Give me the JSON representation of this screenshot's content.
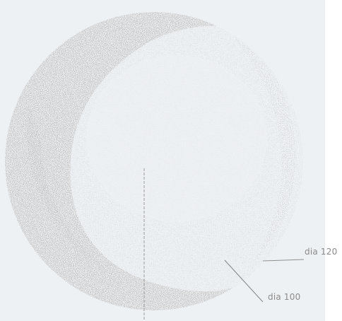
{
  "figure": {
    "labels": {
      "outer": "dia 120",
      "inner": "dia 100"
    },
    "colors": {
      "background": "#eef1f4",
      "stipple": "#8a8a8a",
      "line": "#8f8f8f"
    }
  }
}
